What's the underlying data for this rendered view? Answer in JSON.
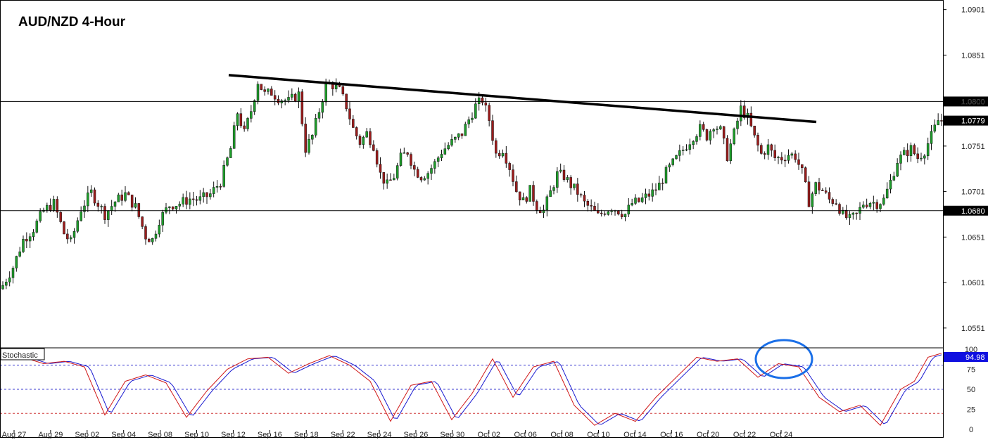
{
  "chart_data": {
    "type": "candlestick",
    "title": "AUD/NZD 4-Hour",
    "price_panel": {
      "ylim": [
        1.053,
        1.091
      ],
      "y_ticks": [
        "1.0901",
        "1.0851",
        "1.0800",
        "1.0751",
        "1.0701",
        "1.0651",
        "1.0601",
        "1.0551"
      ],
      "colors": {
        "up": "#1e9e2b",
        "down": "#9c1c1c",
        "wick": "#111111"
      },
      "horizontal_levels": [
        {
          "value": 1.08,
          "label": "1.0800",
          "tag_color": "#000000"
        },
        {
          "value": 1.068,
          "label": "1.0680",
          "tag_color": "#000000"
        }
      ],
      "current_price": {
        "value": 1.0779,
        "label": "1.0779",
        "tag_color": "#000000"
      },
      "trendline": {
        "start": [
          0.0,
          1.0829
        ],
        "end": [
          1.0,
          1.0779
        ],
        "color": "#000000"
      },
      "close_path": [
        [
          0,
          1.0598
        ],
        [
          3,
          1.0618
        ],
        [
          6,
          1.0648
        ],
        [
          9,
          1.066
        ],
        [
          12,
          1.068
        ],
        [
          15,
          1.0688
        ],
        [
          18,
          1.0655
        ],
        [
          20,
          1.0645
        ],
        [
          23,
          1.0682
        ],
        [
          26,
          1.07
        ],
        [
          28,
          1.0688
        ],
        [
          30,
          1.0676
        ],
        [
          33,
          1.069
        ],
        [
          36,
          1.0698
        ],
        [
          39,
          1.0684
        ],
        [
          42,
          1.0652
        ],
        [
          44,
          1.0648
        ],
        [
          46,
          1.067
        ],
        [
          49,
          1.0686
        ],
        [
          52,
          1.0688
        ],
        [
          55,
          1.0693
        ],
        [
          58,
          1.0692
        ],
        [
          61,
          1.0698
        ],
        [
          64,
          1.0712
        ],
        [
          67,
          1.0748
        ],
        [
          69,
          1.0788
        ],
        [
          71,
          1.0765
        ],
        [
          73,
          1.079
        ],
        [
          75,
          1.0822
        ],
        [
          77,
          1.0808
        ],
        [
          79,
          1.081
        ],
        [
          81,
          1.0804
        ],
        [
          84,
          1.08
        ],
        [
          87,
          1.0808
        ],
        [
          89,
          1.0748
        ],
        [
          91,
          1.0762
        ],
        [
          93,
          1.079
        ],
        [
          95,
          1.0818
        ],
        [
          97,
          1.0818
        ],
        [
          99,
          1.0812
        ],
        [
          101,
          1.0795
        ],
        [
          103,
          1.077
        ],
        [
          105,
          1.0755
        ],
        [
          107,
          1.0765
        ],
        [
          109,
          1.0752
        ],
        [
          111,
          1.072
        ],
        [
          113,
          1.0708
        ],
        [
          115,
          1.0718
        ],
        [
          117,
          1.0738
        ],
        [
          119,
          1.0745
        ],
        [
          121,
          1.0725
        ],
        [
          123,
          1.0718
        ],
        [
          125,
          1.0722
        ],
        [
          127,
          1.0732
        ],
        [
          129,
          1.0745
        ],
        [
          131,
          1.0752
        ],
        [
          133,
          1.0758
        ],
        [
          135,
          1.0765
        ],
        [
          137,
          1.078
        ],
        [
          139,
          1.0795
        ],
        [
          141,
          1.0802
        ],
        [
          143,
          1.078
        ],
        [
          145,
          1.0742
        ],
        [
          147,
          1.0748
        ],
        [
          149,
          1.0728
        ],
        [
          151,
          1.0702
        ],
        [
          153,
          1.069
        ],
        [
          155,
          1.0702
        ],
        [
          157,
          1.0685
        ],
        [
          159,
          1.068
        ],
        [
          161,
          1.07
        ],
        [
          163,
          1.072
        ],
        [
          165,
          1.0718
        ],
        [
          167,
          1.0708
        ],
        [
          169,
          1.07
        ],
        [
          171,
          1.0688
        ],
        [
          173,
          1.0682
        ],
        [
          175,
          1.0674
        ],
        [
          177,
          1.068
        ],
        [
          179,
          1.0684
        ],
        [
          181,
          1.068
        ],
        [
          183,
          1.0676
        ],
        [
          185,
          1.0688
        ],
        [
          187,
          1.069
        ],
        [
          189,
          1.0695
        ],
        [
          191,
          1.07
        ],
        [
          193,
          1.0708
        ],
        [
          195,
          1.0722
        ],
        [
          197,
          1.0732
        ],
        [
          199,
          1.0742
        ],
        [
          201,
          1.0752
        ],
        [
          203,
          1.0762
        ],
        [
          205,
          1.077
        ],
        [
          207,
          1.0762
        ],
        [
          209,
          1.0775
        ],
        [
          211,
          1.0768
        ],
        [
          213,
          1.074
        ],
        [
          215,
          1.0765
        ],
        [
          217,
          1.0792
        ],
        [
          219,
          1.0782
        ],
        [
          221,
          1.076
        ],
        [
          223,
          1.0742
        ],
        [
          225,
          1.075
        ],
        [
          227,
          1.0738
        ],
        [
          229,
          1.0738
        ],
        [
          231,
          1.0742
        ],
        [
          233,
          1.074
        ],
        [
          235,
          1.0722
        ],
        [
          237,
          1.069
        ],
        [
          239,
          1.0708
        ],
        [
          241,
          1.0702
        ],
        [
          243,
          1.0692
        ],
        [
          245,
          1.069
        ],
        [
          247,
          1.0675
        ],
        [
          249,
          1.067
        ],
        [
          251,
          1.0675
        ],
        [
          253,
          1.0688
        ],
        [
          255,
          1.069
        ],
        [
          257,
          1.0688
        ],
        [
          259,
          1.0692
        ],
        [
          261,
          1.0712
        ],
        [
          263,
          1.0735
        ],
        [
          265,
          1.0742
        ],
        [
          267,
          1.0748
        ],
        [
          269,
          1.0738
        ],
        [
          271,
          1.0746
        ],
        [
          273,
          1.0762
        ],
        [
          275,
          1.0779
        ]
      ]
    },
    "stochastic_panel": {
      "label": "Stochastic",
      "ylim": [
        0,
        100
      ],
      "y_ticks": [
        "100",
        "75",
        "50",
        "25",
        "0"
      ],
      "levels": [
        {
          "value": 80,
          "color": "#3b3bd0"
        },
        {
          "value": 50,
          "color": "#3b3bd0"
        },
        {
          "value": 20,
          "color": "#d03b3b"
        }
      ],
      "current_value": {
        "value": 94.98,
        "label": "94.98",
        "tag_color": "#1010e0"
      },
      "main_line_color": "#d01818",
      "signal_line_color": "#1818d0",
      "highlight_circle_color": "#1a6fe8",
      "main_line": [
        [
          0,
          88
        ],
        [
          6,
          90
        ],
        [
          12,
          82
        ],
        [
          18,
          85
        ],
        [
          24,
          78
        ],
        [
          30,
          18
        ],
        [
          36,
          60
        ],
        [
          42,
          68
        ],
        [
          48,
          58
        ],
        [
          54,
          15
        ],
        [
          60,
          48
        ],
        [
          66,
          75
        ],
        [
          72,
          88
        ],
        [
          78,
          90
        ],
        [
          84,
          70
        ],
        [
          90,
          82
        ],
        [
          96,
          92
        ],
        [
          102,
          80
        ],
        [
          108,
          60
        ],
        [
          114,
          10
        ],
        [
          120,
          55
        ],
        [
          126,
          60
        ],
        [
          132,
          12
        ],
        [
          138,
          45
        ],
        [
          144,
          88
        ],
        [
          150,
          40
        ],
        [
          156,
          78
        ],
        [
          162,
          85
        ],
        [
          168,
          30
        ],
        [
          174,
          5
        ],
        [
          180,
          20
        ],
        [
          186,
          10
        ],
        [
          192,
          40
        ],
        [
          198,
          65
        ],
        [
          204,
          90
        ],
        [
          210,
          85
        ],
        [
          216,
          88
        ],
        [
          222,
          65
        ],
        [
          228,
          82
        ],
        [
          234,
          78
        ],
        [
          240,
          40
        ],
        [
          246,
          22
        ],
        [
          252,
          30
        ],
        [
          258,
          5
        ],
        [
          264,
          50
        ],
        [
          268,
          60
        ],
        [
          272,
          90
        ],
        [
          276,
          94.98
        ]
      ]
    },
    "x_tick_labels": [
      "Aug 27",
      "Aug 29",
      "Sep 02",
      "Sep 04",
      "Sep 08",
      "Sep 10",
      "Sep 12",
      "Sep 16",
      "Sep 18",
      "Sep 22",
      "Sep 24",
      "Sep 26",
      "Sep 30",
      "Oct 02",
      "Oct 06",
      "Oct 08",
      "Oct 10",
      "Oct 14",
      "Oct 16",
      "Oct 20",
      "Oct 22",
      "Oct 24"
    ],
    "legend": "none",
    "grid": false
  }
}
